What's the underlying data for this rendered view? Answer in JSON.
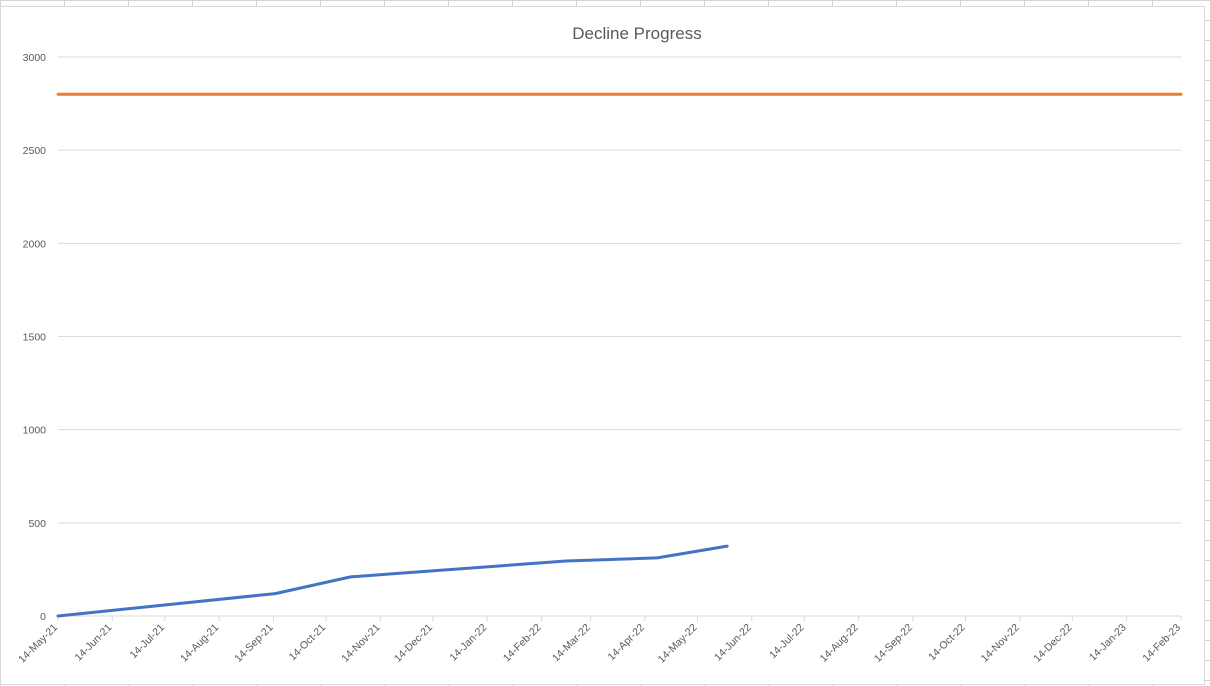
{
  "chart_data": {
    "type": "line",
    "title": "Decline Progress",
    "xlabel": "",
    "ylabel": "",
    "ylim": [
      0,
      3000
    ],
    "yticks": [
      "0",
      "500",
      "1000",
      "1500",
      "2000",
      "2500",
      "3000"
    ],
    "xlim": [
      "2021-05-14",
      "2023-02-14"
    ],
    "xticks": [
      {
        "date": "2021-05-14",
        "label": "14-May-21"
      },
      {
        "date": "2021-06-14",
        "label": "14-Jun-21"
      },
      {
        "date": "2021-07-14",
        "label": "14-Jul-21"
      },
      {
        "date": "2021-08-14",
        "label": "14-Aug-21"
      },
      {
        "date": "2021-09-14",
        "label": "14-Sep-21"
      },
      {
        "date": "2021-10-14",
        "label": "14-Oct-21"
      },
      {
        "date": "2021-11-14",
        "label": "14-Nov-21"
      },
      {
        "date": "2021-12-14",
        "label": "14-Dec-21"
      },
      {
        "date": "2022-01-14",
        "label": "14-Jan-22"
      },
      {
        "date": "2022-02-14",
        "label": "14-Feb-22"
      },
      {
        "date": "2022-03-14",
        "label": "14-Mar-22"
      },
      {
        "date": "2022-04-14",
        "label": "14-Apr-22"
      },
      {
        "date": "2022-05-14",
        "label": "14-May-22"
      },
      {
        "date": "2022-06-14",
        "label": "14-Jun-22"
      },
      {
        "date": "2022-07-14",
        "label": "14-Jul-22"
      },
      {
        "date": "2022-08-14",
        "label": "14-Aug-22"
      },
      {
        "date": "2022-09-14",
        "label": "14-Sep-22"
      },
      {
        "date": "2022-10-14",
        "label": "14-Oct-22"
      },
      {
        "date": "2022-11-14",
        "label": "14-Nov-22"
      },
      {
        "date": "2022-12-14",
        "label": "14-Dec-22"
      },
      {
        "date": "2023-01-14",
        "label": "14-Jan-23"
      },
      {
        "date": "2023-02-14",
        "label": "14-Feb-23"
      }
    ],
    "grid": true,
    "legend": "none",
    "series": [
      {
        "color": "#4472c4",
        "points": [
          {
            "x": "2021-05-14",
            "y": 0
          },
          {
            "x": "2021-09-15",
            "y": 120
          },
          {
            "x": "2021-10-28",
            "y": 210
          },
          {
            "x": "2022-02-28",
            "y": 295
          },
          {
            "x": "2022-04-21",
            "y": 312
          },
          {
            "x": "2022-05-31",
            "y": 375
          }
        ]
      },
      {
        "color": "#ed7d31",
        "points": [
          {
            "x": "2021-05-14",
            "y": 2800
          },
          {
            "x": "2023-02-14",
            "y": 2800
          }
        ]
      }
    ]
  }
}
